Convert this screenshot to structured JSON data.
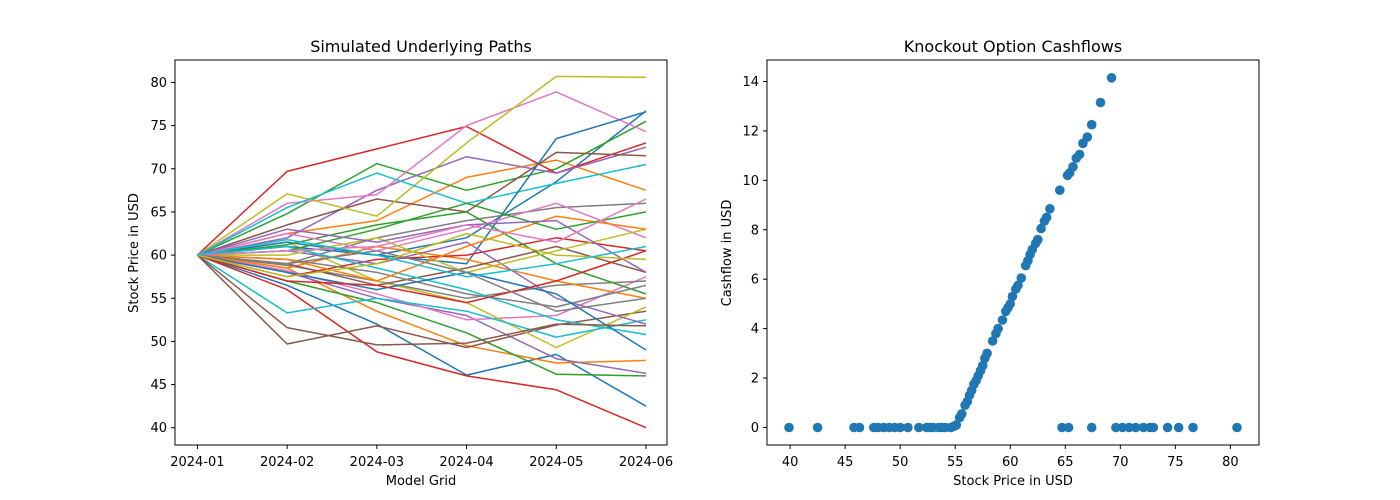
{
  "charts": [
    {
      "title": "Simulated Underlying Paths",
      "xlabel": "Model Grid",
      "ylabel": "Stock Price in USD",
      "x_ticks": [
        "2024-01",
        "2024-02",
        "2024-03",
        "2024-04",
        "2024-05",
        "2024-06"
      ],
      "y_ticks": [
        "40",
        "45",
        "50",
        "55",
        "60",
        "65",
        "70",
        "75",
        "80"
      ]
    },
    {
      "title": "Knockout Option Cashflows",
      "xlabel": "Stock Price in USD",
      "ylabel": "Cashflow in USD",
      "x_ticks": [
        "40",
        "45",
        "50",
        "55",
        "60",
        "65",
        "70",
        "75",
        "80"
      ],
      "y_ticks": [
        "0",
        "2",
        "4",
        "6",
        "8",
        "10",
        "12",
        "14"
      ]
    }
  ],
  "chart_data": [
    {
      "type": "line",
      "title": "Simulated Underlying Paths",
      "xlabel": "Model Grid",
      "ylabel": "Stock Price in USD",
      "x": [
        "2024-01",
        "2024-02",
        "2024-03",
        "2024-04",
        "2024-05",
        "2024-06"
      ],
      "ylim": [
        38.0,
        82.6
      ],
      "grid": false,
      "colors": [
        "#1f77b4",
        "#ff7f0e",
        "#2ca02c",
        "#d62728",
        "#9467bd",
        "#8c564b",
        "#e377c2",
        "#7f7f7f",
        "#bcbd22",
        "#17becf"
      ],
      "series": [
        {
          "values": [
            60,
            56.5,
            52.0,
            46.1,
            48.5,
            42.5
          ]
        },
        {
          "values": [
            60,
            58.5,
            53.5,
            49.5,
            47.5,
            47.8
          ]
        },
        {
          "values": [
            60,
            57.0,
            54.5,
            51.0,
            46.2,
            46.0
          ]
        },
        {
          "values": [
            60,
            56.0,
            48.8,
            46.0,
            44.4,
            40.0
          ]
        },
        {
          "values": [
            60,
            58.0,
            55.0,
            53.0,
            48.0,
            46.3
          ]
        },
        {
          "values": [
            60,
            49.7,
            51.8,
            49.3,
            51.9,
            53.5
          ]
        },
        {
          "values": [
            60,
            58.2,
            55.5,
            52.5,
            53.0,
            57.5
          ]
        },
        {
          "values": [
            60,
            58.8,
            57.0,
            55.0,
            56.5,
            57.0
          ]
        },
        {
          "values": [
            60,
            61.5,
            57.0,
            54.5,
            49.3,
            54.0
          ]
        },
        {
          "values": [
            60,
            53.3,
            55.0,
            53.5,
            50.5,
            52.5
          ]
        },
        {
          "values": [
            60,
            61.0,
            60.0,
            62.0,
            68.5,
            76.7
          ]
        },
        {
          "values": [
            60,
            62.5,
            64.0,
            69.0,
            71.0,
            67.5
          ]
        },
        {
          "values": [
            60,
            64.8,
            70.6,
            67.5,
            70.0,
            75.5
          ]
        },
        {
          "values": [
            60,
            69.7,
            72.3,
            74.9,
            69.5,
            73.0
          ]
        },
        {
          "values": [
            60,
            62.0,
            67.5,
            71.4,
            69.5,
            72.5
          ]
        },
        {
          "values": [
            60,
            63.5,
            66.5,
            65.0,
            71.9,
            71.5
          ]
        },
        {
          "values": [
            60,
            66.0,
            67.0,
            75.0,
            78.9,
            74.3
          ]
        },
        {
          "values": [
            60,
            59.0,
            62.0,
            64.0,
            65.5,
            66.0
          ]
        },
        {
          "values": [
            60,
            67.1,
            64.5,
            73.0,
            80.7,
            80.6
          ]
        },
        {
          "values": [
            60,
            65.5,
            69.5,
            66.0,
            68.3,
            70.5
          ]
        },
        {
          "values": [
            60,
            61.5,
            60.0,
            59.0,
            73.5,
            76.6
          ]
        },
        {
          "values": [
            60,
            58.5,
            61.0,
            59.5,
            57.0,
            55.0
          ]
        },
        {
          "values": [
            60,
            61.2,
            63.5,
            65.0,
            59.0,
            55.5
          ]
        },
        {
          "values": [
            60,
            57.5,
            59.5,
            60.0,
            62.0,
            60.5
          ]
        },
        {
          "values": [
            60,
            60.5,
            59.0,
            61.5,
            55.0,
            52.0
          ]
        },
        {
          "values": [
            60,
            59.0,
            56.5,
            58.5,
            61.0,
            58.0
          ]
        },
        {
          "values": [
            60,
            62.5,
            60.5,
            63.0,
            66.0,
            62.0
          ]
        },
        {
          "values": [
            60,
            59.5,
            58.0,
            55.5,
            54.0,
            56.5
          ]
        },
        {
          "values": [
            60,
            60.0,
            62.0,
            58.0,
            60.5,
            63.0
          ]
        },
        {
          "values": [
            60,
            61.0,
            58.5,
            56.0,
            52.5,
            50.8
          ]
        },
        {
          "values": [
            60,
            58.0,
            56.0,
            58.0,
            55.5,
            49.0
          ]
        },
        {
          "values": [
            60,
            59.5,
            57.0,
            61.0,
            64.5,
            63.0
          ]
        },
        {
          "values": [
            60,
            60.5,
            63.0,
            66.0,
            63.0,
            65.0
          ]
        },
        {
          "values": [
            60,
            57.0,
            56.5,
            54.5,
            57.0,
            60.5
          ]
        },
        {
          "values": [
            60,
            63.0,
            61.5,
            63.5,
            64.0,
            58.0
          ]
        },
        {
          "values": [
            60,
            51.6,
            49.6,
            49.8,
            52.0,
            51.8
          ]
        },
        {
          "values": [
            60,
            60.5,
            61.0,
            63.5,
            61.5,
            66.5
          ]
        },
        {
          "values": [
            60,
            59.0,
            60.5,
            58.0,
            53.5,
            55.0
          ]
        },
        {
          "values": [
            60,
            57.5,
            59.0,
            62.5,
            60.0,
            59.5
          ]
        },
        {
          "values": [
            60,
            61.8,
            60.0,
            57.5,
            59.0,
            61.0
          ]
        }
      ]
    },
    {
      "type": "scatter",
      "title": "Knockout Option Cashflows",
      "xlabel": "Stock Price in USD",
      "ylabel": "Cashflow in USD",
      "xlim": [
        37.9,
        82.6
      ],
      "ylim": [
        -0.71,
        14.87
      ],
      "grid": false,
      "color": "#1f77b4",
      "points": [
        [
          39.9,
          0
        ],
        [
          42.5,
          0
        ],
        [
          45.8,
          0
        ],
        [
          46.3,
          0
        ],
        [
          47.6,
          0
        ],
        [
          48.0,
          0
        ],
        [
          48.5,
          0
        ],
        [
          49.0,
          0
        ],
        [
          49.5,
          0
        ],
        [
          50.0,
          0
        ],
        [
          50.7,
          0
        ],
        [
          51.7,
          0
        ],
        [
          52.4,
          0
        ],
        [
          52.7,
          0
        ],
        [
          53.0,
          0
        ],
        [
          53.5,
          0
        ],
        [
          53.8,
          0
        ],
        [
          54.1,
          0
        ],
        [
          54.6,
          0
        ],
        [
          54.9,
          0.05
        ],
        [
          55.1,
          0.1
        ],
        [
          55.4,
          0.4
        ],
        [
          55.6,
          0.55
        ],
        [
          55.9,
          0.9
        ],
        [
          56.1,
          1.05
        ],
        [
          56.3,
          1.3
        ],
        [
          56.5,
          1.5
        ],
        [
          56.7,
          1.75
        ],
        [
          56.9,
          1.9
        ],
        [
          57.1,
          2.1
        ],
        [
          57.3,
          2.3
        ],
        [
          57.5,
          2.5
        ],
        [
          57.7,
          2.8
        ],
        [
          57.9,
          3.0
        ],
        [
          58.4,
          3.5
        ],
        [
          58.7,
          3.8
        ],
        [
          58.9,
          4.0
        ],
        [
          59.3,
          4.35
        ],
        [
          59.6,
          4.7
        ],
        [
          59.8,
          4.85
        ],
        [
          60.0,
          5.0
        ],
        [
          60.2,
          5.3
        ],
        [
          60.5,
          5.6
        ],
        [
          60.7,
          5.75
        ],
        [
          61.0,
          6.05
        ],
        [
          61.4,
          6.55
        ],
        [
          61.6,
          6.75
        ],
        [
          61.8,
          7.0
        ],
        [
          62.0,
          7.2
        ],
        [
          62.3,
          7.45
        ],
        [
          62.5,
          7.6
        ],
        [
          62.8,
          8.05
        ],
        [
          63.1,
          8.35
        ],
        [
          63.3,
          8.5
        ],
        [
          63.6,
          8.85
        ],
        [
          64.5,
          9.6
        ],
        [
          65.2,
          10.2
        ],
        [
          65.4,
          10.3
        ],
        [
          65.7,
          10.55
        ],
        [
          66.0,
          10.9
        ],
        [
          66.3,
          11.05
        ],
        [
          66.6,
          11.5
        ],
        [
          67.0,
          11.75
        ],
        [
          67.4,
          12.25
        ],
        [
          68.2,
          13.15
        ],
        [
          69.2,
          14.15
        ],
        [
          64.7,
          0
        ],
        [
          65.3,
          0
        ],
        [
          67.4,
          0
        ],
        [
          69.6,
          0
        ],
        [
          70.2,
          0
        ],
        [
          70.8,
          0
        ],
        [
          71.4,
          0
        ],
        [
          72.1,
          0
        ],
        [
          72.7,
          0
        ],
        [
          73.0,
          0
        ],
        [
          74.3,
          0
        ],
        [
          75.3,
          0
        ],
        [
          76.6,
          0
        ],
        [
          80.6,
          0
        ]
      ]
    }
  ]
}
